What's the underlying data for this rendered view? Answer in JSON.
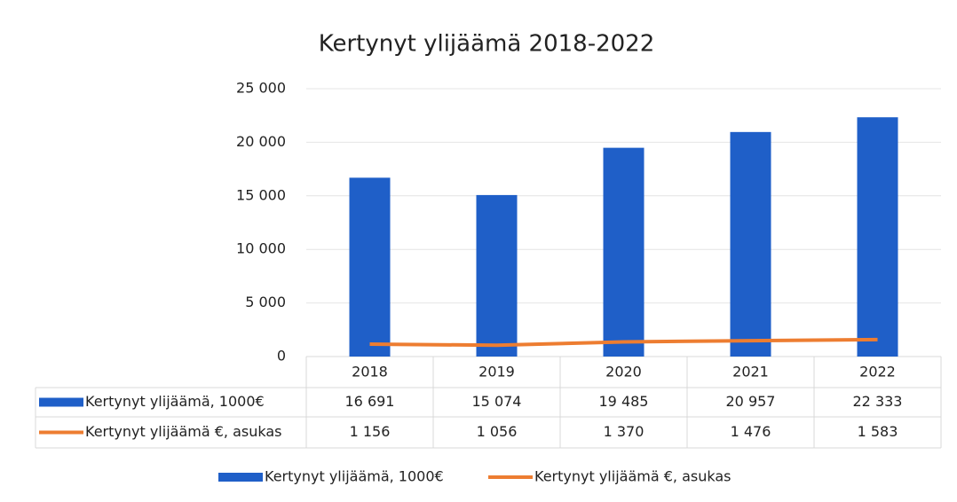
{
  "chart_data": {
    "type": "bar",
    "title": "Kertynyt ylijäämä 2018-2022",
    "categories": [
      "2018",
      "2019",
      "2020",
      "2021",
      "2022"
    ],
    "series": [
      {
        "name": "Kertynyt ylijäämä, 1000€",
        "type": "bar",
        "color": "#1f5fc8",
        "values": [
          16691,
          15074,
          19485,
          20957,
          22333
        ],
        "value_labels": [
          "16 691",
          "15 074",
          "19 485",
          "20 957",
          "22 333"
        ]
      },
      {
        "name": "Kertynyt ylijäämä €, asukas",
        "type": "line",
        "color": "#ed7d31",
        "values": [
          1156,
          1056,
          1370,
          1476,
          1583
        ],
        "value_labels": [
          "1 156",
          "1 056",
          "1 370",
          "1 476",
          "1 583"
        ]
      }
    ],
    "ylim": [
      0,
      25000
    ],
    "yticks": [
      0,
      {
        "value": 5000,
        "label": "5 000"
      },
      {
        "value": 10000,
        "label": "10 000"
      },
      {
        "value": 15000,
        "label": "15 000"
      },
      {
        "value": 20000,
        "label": "20 000"
      },
      {
        "value": 25000,
        "label": "25 000"
      }
    ],
    "grid": true,
    "legend": "bottom",
    "data_table": true
  }
}
